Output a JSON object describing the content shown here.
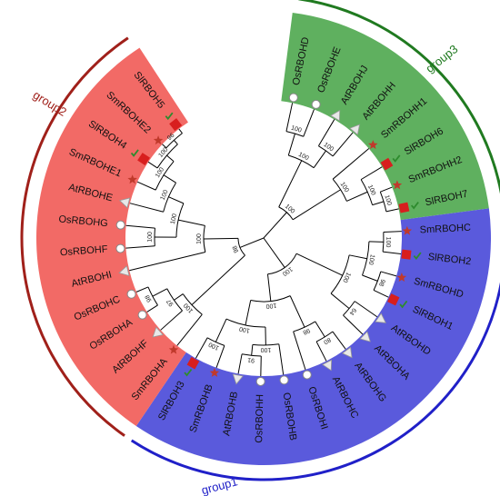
{
  "groups": [
    {
      "label": "group1",
      "color": "#2020c8",
      "fill": "#5a5adc"
    },
    {
      "label": "group2",
      "color": "#a0201a",
      "fill": "#f26a66"
    },
    {
      "label": "group3",
      "color": "#207a20",
      "fill": "#5fb05f"
    }
  ],
  "colors": {
    "star": "#c0392b",
    "square": "#d81e1e",
    "check": "#2e8b2e",
    "circle_fill": "#ffffff",
    "triangle_fill": "#e8e8e8"
  },
  "leaves": [
    {
      "label": "OsRBOHD",
      "marker": "circle",
      "group": "group3"
    },
    {
      "label": "OsRBOHE",
      "marker": "circle",
      "group": "group3"
    },
    {
      "label": "AtRBOHJ",
      "marker": "triangle",
      "group": "group3"
    },
    {
      "label": "AtRBOHH",
      "marker": "triangle",
      "group": "group3"
    },
    {
      "label": "SmRBOHH1",
      "marker": "star",
      "group": "group3"
    },
    {
      "label": "SlRBOH6",
      "marker": "square-check",
      "group": "group3"
    },
    {
      "label": "SmRBOHH2",
      "marker": "star",
      "group": "group3"
    },
    {
      "label": "SlRBOH7",
      "marker": "square-check",
      "group": "group3"
    },
    {
      "label": "SmRBOHC",
      "marker": "star",
      "group": "group1"
    },
    {
      "label": "SlRBOH2",
      "marker": "square-check",
      "group": "group1"
    },
    {
      "label": "SmRBOHD",
      "marker": "star",
      "group": "group1"
    },
    {
      "label": "SlRBOH1",
      "marker": "square-check",
      "group": "group1"
    },
    {
      "label": "AtRBOHD",
      "marker": "triangle",
      "group": "group1"
    },
    {
      "label": "AtRBOHA",
      "marker": "triangle",
      "group": "group1"
    },
    {
      "label": "AtRBOHG",
      "marker": "triangle",
      "group": "group1"
    },
    {
      "label": "AtRBOHC",
      "marker": "triangle",
      "group": "group1"
    },
    {
      "label": "OsRBOHI",
      "marker": "circle",
      "group": "group1"
    },
    {
      "label": "OsRBOHB",
      "marker": "circle",
      "group": "group1"
    },
    {
      "label": "OsRBOHH",
      "marker": "circle",
      "group": "group1"
    },
    {
      "label": "AtRBOHB",
      "marker": "triangle",
      "group": "group1"
    },
    {
      "label": "SmRBOHB",
      "marker": "star",
      "group": "group1"
    },
    {
      "label": "SlRBOH3",
      "marker": "square-check",
      "group": "group1"
    },
    {
      "label": "SmRBOHA",
      "marker": "star",
      "group": "group2"
    },
    {
      "label": "AtRBOHF",
      "marker": "triangle",
      "group": "group2"
    },
    {
      "label": "OsRBOHA",
      "marker": "circle",
      "group": "group2"
    },
    {
      "label": "OsRBOHC",
      "marker": "circle",
      "group": "group2"
    },
    {
      "label": "AtRBOHI",
      "marker": "triangle",
      "group": "group2"
    },
    {
      "label": "OsRBOHF",
      "marker": "circle",
      "group": "group2"
    },
    {
      "label": "OsRBOHG",
      "marker": "circle",
      "group": "group2"
    },
    {
      "label": "AtRBOHE",
      "marker": "triangle",
      "group": "group2"
    },
    {
      "label": "SmRBOHE1",
      "marker": "star",
      "group": "group2"
    },
    {
      "label": "SlRBOH4",
      "marker": "square-check",
      "group": "group2"
    },
    {
      "label": "SmRBOHE2",
      "marker": "star",
      "group": "group2"
    },
    {
      "label": "SlRBOH5",
      "marker": "square-check",
      "group": "group2"
    }
  ],
  "bootstrap": [
    "100",
    "100",
    "100",
    "100",
    "100",
    "100",
    "100",
    "100",
    "100",
    "100",
    "100",
    "98",
    "64",
    "100",
    "98",
    "80",
    "100",
    "100",
    "91",
    "100",
    "98",
    "100",
    "97",
    "98",
    "100",
    "100",
    "100",
    "100",
    "100",
    "100",
    "96",
    "100",
    "98",
    "100"
  ]
}
